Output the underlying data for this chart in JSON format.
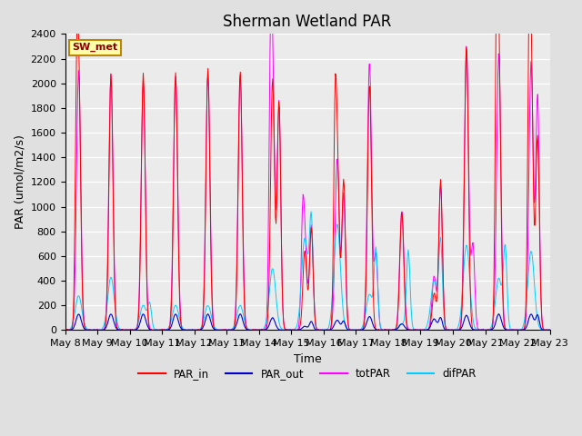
{
  "title": "Sherman Wetland PAR",
  "ylabel": "PAR (umol/m2/s)",
  "xlabel": "Time",
  "ylim": [
    0,
    2400
  ],
  "yticks": [
    0,
    200,
    400,
    600,
    800,
    1000,
    1200,
    1400,
    1600,
    1800,
    2000,
    2200,
    2400
  ],
  "start_day": 8,
  "num_days": 15,
  "legend_label": "SW_met",
  "colors": {
    "PAR_in": "#ff0000",
    "PAR_out": "#0000cc",
    "totPAR": "#ff00ff",
    "difPAR": "#00ccff"
  },
  "bg_color": "#e0e0e0",
  "ax_bg_color": "#ebebeb",
  "title_fontsize": 12,
  "label_fontsize": 9,
  "tick_fontsize": 8,
  "legend_box_color": "#ffffaa",
  "legend_box_edge": "#bb8800",
  "day_peaks": {
    "PAR_in": [
      2100,
      2080,
      2080,
      2090,
      2120,
      2100,
      2040,
      650,
      1420,
      2000,
      960,
      300,
      2300,
      2230,
      2200
    ],
    "PAR_out": [
      130,
      130,
      130,
      130,
      130,
      130,
      100,
      30,
      80,
      110,
      50,
      90,
      120,
      130,
      130
    ],
    "totPAR": [
      2100,
      2070,
      2000,
      2060,
      2080,
      2080,
      2060,
      680,
      1400,
      2180,
      970,
      440,
      2310,
      2250,
      2180
    ],
    "difPAR": [
      280,
      430,
      200,
      200,
      200,
      200,
      500,
      750,
      860,
      290,
      50,
      400,
      690,
      420,
      640
    ],
    "PAR_in_pm": [
      0,
      0,
      0,
      0,
      0,
      0,
      1850,
      830,
      1220,
      0,
      0,
      1220,
      0,
      0,
      1580
    ],
    "PAR_out_pm": [
      0,
      0,
      0,
      0,
      0,
      0,
      0,
      70,
      70,
      0,
      0,
      100,
      0,
      0,
      120
    ],
    "totPAR_pm": [
      0,
      0,
      0,
      0,
      0,
      0,
      1850,
      850,
      1100,
      610,
      0,
      1170,
      690,
      0,
      1900
    ],
    "difPAR_pm": [
      0,
      0,
      200,
      0,
      0,
      0,
      0,
      850,
      0,
      630,
      640,
      700,
      0,
      640,
      0
    ],
    "PAR_in_note": [
      1100,
      0,
      0,
      0,
      0,
      0,
      0,
      0,
      1220,
      0,
      0,
      0,
      0,
      1900,
      1500
    ],
    "totPAR_note": [
      0,
      0,
      0,
      0,
      0,
      0,
      1280,
      660,
      0,
      0,
      0,
      0,
      0,
      0,
      0
    ]
  }
}
